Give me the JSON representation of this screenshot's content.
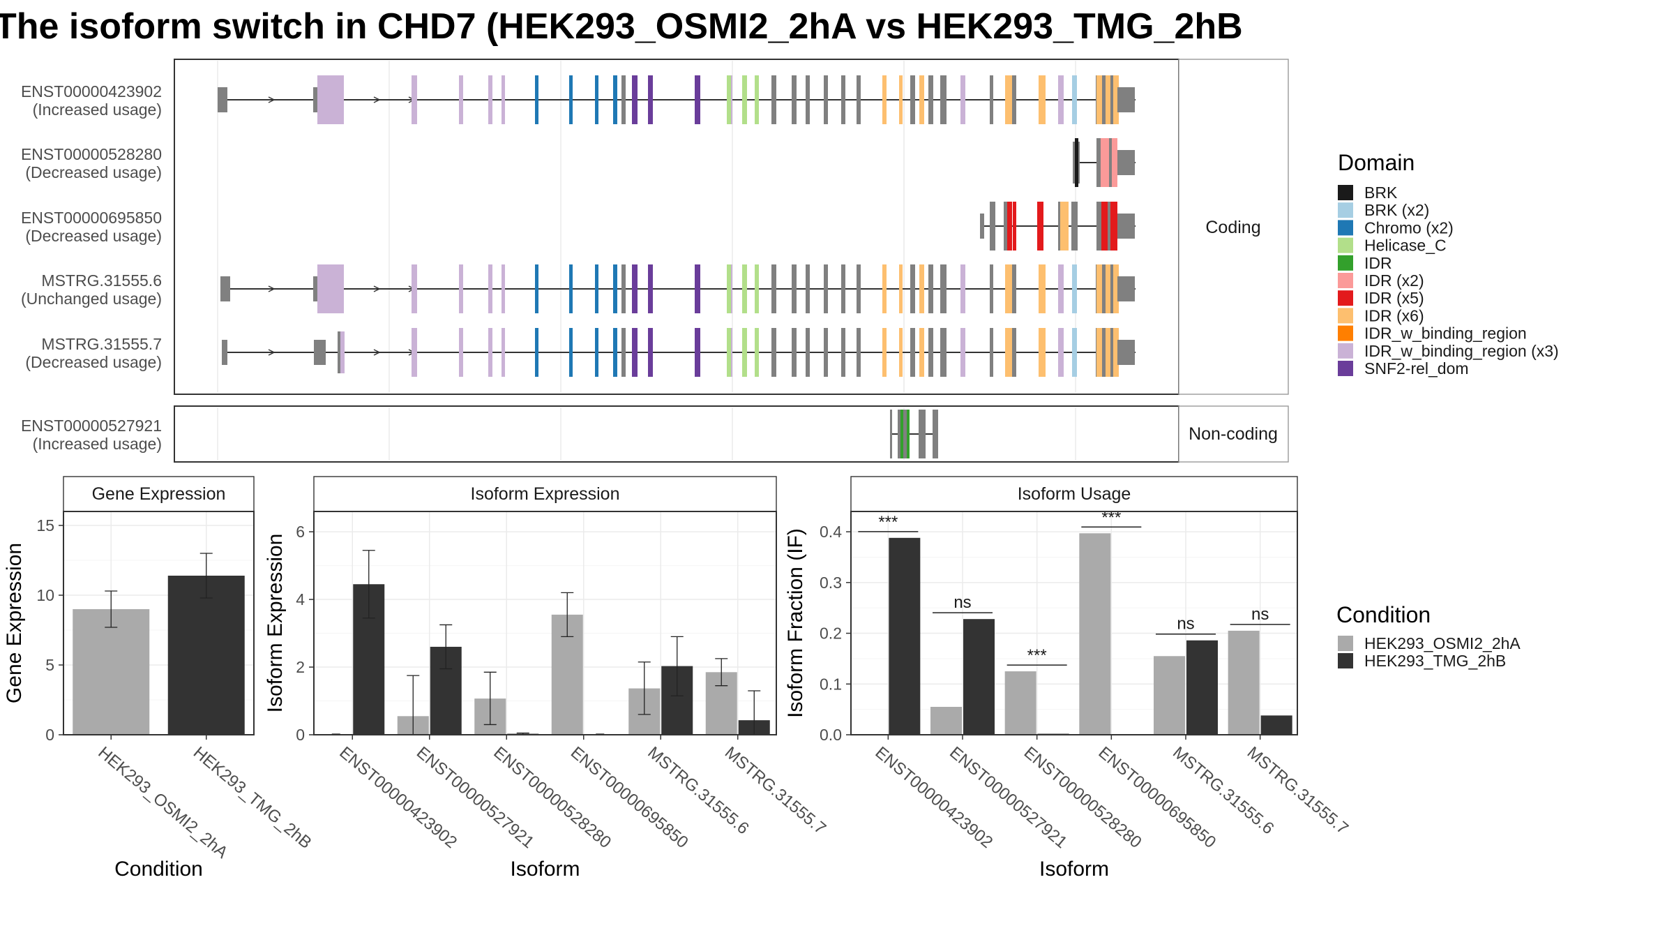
{
  "title": "The isoform switch in CHD7 (HEK293_OSMI2_2hA vs HEK293_TMG_2hB",
  "colors": {
    "cond1": "#aaaaaa",
    "cond2": "#333333",
    "noDomain": "#808080",
    "domains": {
      "BRK": "#1a1a1a",
      "BRK (x2)": "#a6cee3",
      "Chromo (x2)": "#1f78b4",
      "Helicase_C": "#b2df8a",
      "IDR": "#33a02c",
      "IDR (x2)": "#fb9a99",
      "IDR (x5)": "#e31a1c",
      "IDR (x6)": "#fdbf6f",
      "IDR_w_binding_region": "#ff7f00",
      "IDR_w_binding_region (x3)": "#cab2d6",
      "SNF2-rel_dom": "#6a3d9a"
    }
  },
  "structure": {
    "coding_label": "Coding",
    "noncoding_label": "Non-coding",
    "coding": [
      {
        "id": "ENST00000423902",
        "usage": "(Increased usage)",
        "kind": "full"
      },
      {
        "id": "ENST00000528280",
        "usage": "(Decreased usage)",
        "kind": "brk"
      },
      {
        "id": "ENST00000695850",
        "usage": "(Decreased usage)",
        "kind": "short"
      },
      {
        "id": "MSTRG.31555.6",
        "usage": "(Unchanged usage)",
        "kind": "full"
      },
      {
        "id": "MSTRG.31555.7",
        "usage": "(Decreased usage)",
        "kind": "alt"
      }
    ],
    "noncoding": [
      {
        "id": "ENST00000527921",
        "usage": "(Increased usage)",
        "kind": "nc"
      }
    ]
  },
  "legend_domain": {
    "title": "Domain",
    "items": [
      "BRK",
      "BRK (x2)",
      "Chromo (x2)",
      "Helicase_C",
      "IDR",
      "IDR (x2)",
      "IDR (x5)",
      "IDR (x6)",
      "IDR_w_binding_region",
      "IDR_w_binding_region (x3)",
      "SNF2-rel_dom"
    ]
  },
  "legend_condition": {
    "title": "Condition",
    "items": [
      "HEK293_OSMI2_2hA",
      "HEK293_TMG_2hB"
    ]
  },
  "chart_data": [
    {
      "type": "bar",
      "title": "Gene Expression",
      "xlabel": "Condition",
      "ylabel": "Gene Expression",
      "categories": [
        "HEK293_OSMI2_2hA",
        "HEK293_TMG_2hB"
      ],
      "values": [
        9.0,
        11.4
      ],
      "errors": [
        [
          7.7,
          10.3
        ],
        [
          9.8,
          13.0
        ]
      ],
      "yticks": [
        0,
        5,
        10,
        15
      ],
      "ylim": [
        0,
        16
      ]
    },
    {
      "type": "bar",
      "title": "Isoform Expression",
      "xlabel": "Isoform",
      "ylabel": "Isoform Expression",
      "categories": [
        "ENST00000423902",
        "ENST00000527921",
        "ENST00000528280",
        "ENST00000695850",
        "MSTRG.31555.6",
        "MSTRG.31555.7"
      ],
      "series": [
        {
          "name": "HEK293_OSMI2_2hA",
          "values": [
            0.0,
            0.55,
            1.07,
            3.55,
            1.37,
            1.85
          ],
          "errors": [
            [
              0.0,
              0.0
            ],
            [
              0.0,
              1.75
            ],
            [
              0.3,
              1.85
            ],
            [
              2.9,
              4.2
            ],
            [
              0.6,
              2.15
            ],
            [
              1.45,
              2.25
            ]
          ]
        },
        {
          "name": "HEK293_TMG_2hB",
          "values": [
            4.45,
            2.6,
            0.03,
            0.0,
            2.03,
            0.43
          ],
          "errors": [
            [
              3.45,
              5.45
            ],
            [
              1.95,
              3.25
            ],
            [
              0.0,
              0.05
            ],
            [
              0.0,
              0.0
            ],
            [
              1.15,
              2.9
            ],
            [
              0.0,
              1.3
            ]
          ]
        }
      ],
      "yticks": [
        0,
        2,
        4,
        6
      ],
      "ylim": [
        0,
        6.6
      ]
    },
    {
      "type": "bar",
      "title": "Isoform Usage",
      "xlabel": "Isoform",
      "ylabel": "Isoform Fraction (IF)",
      "categories": [
        "ENST00000423902",
        "ENST00000527921",
        "ENST00000528280",
        "ENST00000695850",
        "MSTRG.31555.6",
        "MSTRG.31555.7"
      ],
      "series": [
        {
          "name": "HEK293_OSMI2_2hA",
          "values": [
            0.0,
            0.055,
            0.125,
            0.397,
            0.155,
            0.205
          ]
        },
        {
          "name": "HEK293_TMG_2hB",
          "values": [
            0.388,
            0.228,
            0.002,
            0.0,
            0.186,
            0.038
          ]
        }
      ],
      "significance": [
        "***",
        "ns",
        "***",
        "***",
        "ns",
        "ns"
      ],
      "yticks": [
        0.0,
        0.1,
        0.2,
        0.3,
        0.4
      ],
      "ylim": [
        0,
        0.44
      ]
    }
  ]
}
